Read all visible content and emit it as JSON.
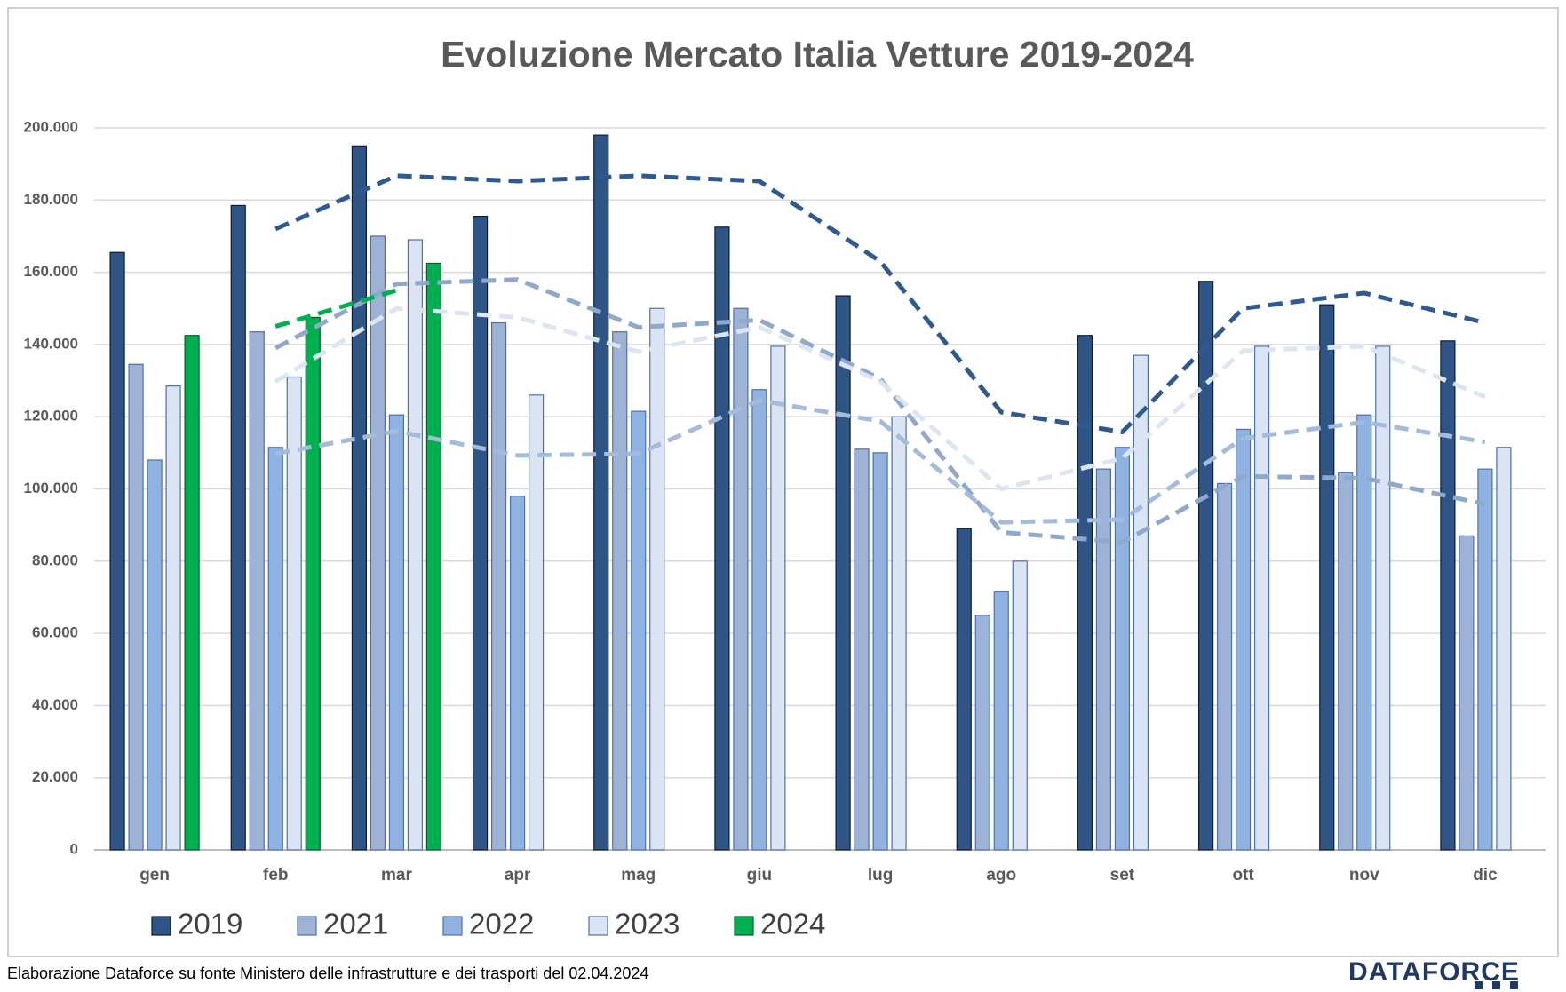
{
  "chart_data": {
    "type": "bar",
    "title": "Evoluzione Mercato Italia Vetture 2019-2024",
    "categories": [
      "gen",
      "feb",
      "mar",
      "apr",
      "mag",
      "giu",
      "lug",
      "ago",
      "set",
      "ott",
      "nov",
      "dic"
    ],
    "series": [
      {
        "name": "2019",
        "color": "#2f5486",
        "values": [
          165500,
          178500,
          195000,
          175500,
          198000,
          172500,
          153500,
          89000,
          142500,
          157500,
          151000,
          141000
        ]
      },
      {
        "name": "2021",
        "color": "#9db2d4",
        "values": [
          134500,
          143500,
          170000,
          146000,
          143500,
          150000,
          111000,
          65000,
          105500,
          101500,
          104500,
          87000
        ]
      },
      {
        "name": "2022",
        "color": "#8fb2e0",
        "values": [
          108000,
          111500,
          120500,
          98000,
          121500,
          127500,
          110000,
          71500,
          111500,
          116500,
          120500,
          105500
        ]
      },
      {
        "name": "2023",
        "color": "#dae4f3",
        "values": [
          128500,
          131000,
          169000,
          126000,
          150000,
          139500,
          120000,
          80000,
          137000,
          139500,
          139500,
          111500
        ]
      },
      {
        "name": "2024",
        "color": "#00b050",
        "values": [
          142500,
          147500,
          162500,
          null,
          null,
          null,
          null,
          null,
          null,
          null,
          null,
          null
        ]
      }
    ],
    "line_colors": [
      "#2f5a8f",
      "#8ea9cc",
      "#a4bcdb",
      "#dce6f2",
      "#00b050"
    ],
    "moving_average": 2,
    "ylim": [
      0,
      200000
    ],
    "yticks": [
      {
        "value": 0,
        "label": "0"
      },
      {
        "value": 20000,
        "label": "20.000"
      },
      {
        "value": 40000,
        "label": "40.000"
      },
      {
        "value": 60000,
        "label": "60.000"
      },
      {
        "value": 80000,
        "label": "80.000"
      },
      {
        "value": 100000,
        "label": "100.000"
      },
      {
        "value": 120000,
        "label": "120.000"
      },
      {
        "value": 140000,
        "label": "140.000"
      },
      {
        "value": 160000,
        "label": "160.000"
      },
      {
        "value": 180000,
        "label": "180.000"
      },
      {
        "value": 200000,
        "label": "200.000"
      }
    ],
    "grid": true,
    "legend": "bottom",
    "source": "Elaborazione Dataforce su fonte Ministero delle infrastrutture e dei trasporti del 02.04.2024",
    "brand": "DATAFORCE"
  }
}
